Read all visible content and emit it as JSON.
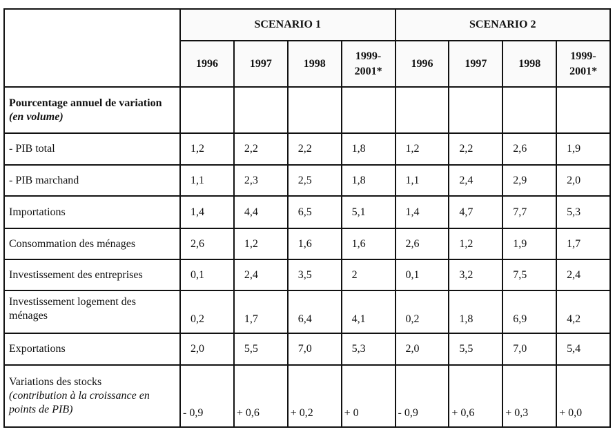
{
  "scenarios": [
    "SCENARIO 1",
    "SCENARIO 2"
  ],
  "years": [
    "1996",
    "1997",
    "1998",
    "1999-2001*",
    "1996",
    "1997",
    "1998",
    "1999-2001*"
  ],
  "section": {
    "label": "Pourcentage annuel de variation",
    "label_italic": "(en volume)"
  },
  "rows": [
    {
      "label": "- PIB total",
      "values": [
        "1,2",
        "2,2",
        "2,2",
        "1,8",
        "1,2",
        "2,2",
        "2,6",
        "1,9"
      ]
    },
    {
      "label": "- PIB marchand",
      "values": [
        "1,1",
        "2,3",
        "2,5",
        "1,8",
        "1,1",
        "2,4",
        "2,9",
        "2,0"
      ]
    },
    {
      "label": "Importations",
      "values": [
        "1,4",
        "4,4",
        "6,5",
        "5,1",
        "1,4",
        "4,7",
        "7,7",
        "5,3"
      ]
    },
    {
      "label": "Consommation des ménages",
      "values": [
        "2,6",
        "1,2",
        "1,6",
        "1,6",
        "2,6",
        "1,2",
        "1,9",
        "1,7"
      ]
    },
    {
      "label": "Investissement des entreprises",
      "values": [
        "0,1",
        "2,4",
        "3,5",
        "2",
        "0,1",
        "3,2",
        "7,5",
        "2,4"
      ]
    },
    {
      "label": "Investissement logement des ménages",
      "values": [
        "0,2",
        "1,7",
        "6,4",
        "4,1",
        "0,2",
        "1,8",
        "6,9",
        "4,2"
      ]
    },
    {
      "label": "Exportations",
      "values": [
        "2,0",
        "5,5",
        "7,0",
        "5,3",
        "2,0",
        "5,5",
        "7,0",
        "5,4"
      ]
    }
  ],
  "stocks": {
    "label": "Variations des stocks",
    "label_italic": "(contribution à la croissance en points de PIB)",
    "values": [
      "- 0,9",
      "+ 0,6",
      "+ 0,2",
      "+ 0",
      "- 0,9",
      "+ 0,6",
      "+ 0,3",
      "+ 0,0"
    ]
  }
}
